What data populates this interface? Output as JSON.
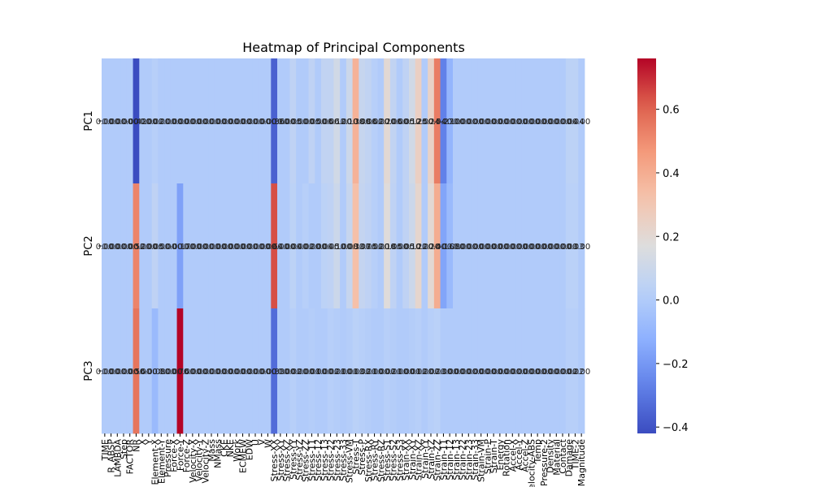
{
  "chart_data": {
    "type": "heatmap",
    "title": "Heatmap of Principal Components",
    "xlabel": "",
    "ylabel": "",
    "rows": [
      "PC1",
      "PC2",
      "PC3"
    ],
    "columns": [
      "TIME",
      "R_ABSP",
      "LAMBDA",
      "Step",
      "FACTOR",
      "NR",
      "X",
      "Y",
      "Element-X",
      "Element-Y",
      "Pressure",
      "Force-X",
      "Force-Y",
      "Force-Z",
      "Velocity-X",
      "Velocity-Y",
      "Velocity-Z",
      "Mass",
      "NMass",
      "CKE",
      "NKE",
      "Work",
      "ECMEW",
      "EDW",
      "U",
      "V",
      "W",
      "Stress-XX",
      "Stress-XY",
      "Stress-XZ",
      "Stress-YY",
      "Stress-YZ",
      "Stress-ZZ",
      "Stress-11",
      "Stress-12",
      "Stress-13",
      "Stress-22",
      "Stress-23",
      "Stress-33",
      "Stress-VM",
      "Stress-T",
      "Stress-P",
      "Stress-RX",
      "Stress-RY",
      "Stress-RZ",
      "Stress-S1",
      "Stress-S2",
      "Stress-S3",
      "Strain-XX",
      "Strain-XY",
      "Strain-XZ",
      "Strain-YY",
      "Strain-YZ",
      "Strain-ZZ",
      "Strain-11",
      "Strain-12",
      "Strain-13",
      "Strain-22",
      "Strain-23",
      "Strain-33",
      "Strain-VM",
      "Strain-P",
      "Strain-T",
      "Energy",
      "Rotation",
      "Accel-X",
      "Accel-Y",
      "Accel-Z",
      "Velocity-ABS",
      "Temp",
      "Pressure-2",
      "Density",
      "Material",
      "Contact",
      "Damage",
      "TIME-2",
      "Magnitude"
    ],
    "values": [
      [
        0.0,
        0.0,
        0.0,
        0.0,
        0.0,
        -0.42,
        0.0,
        0.0,
        0.02,
        0.0,
        0.0,
        0.0,
        0.0,
        0.0,
        0.0,
        0.0,
        0.0,
        0.0,
        0.0,
        0.0,
        0.0,
        0.0,
        0.0,
        0.0,
        0.0,
        0.0,
        0.0,
        -0.36,
        0.0,
        0.0,
        0.05,
        0.0,
        0.0,
        0.05,
        0.0,
        0.06,
        0.06,
        0.12,
        0.0,
        0.1,
        0.38,
        0.08,
        0.06,
        0.02,
        0.0,
        0.2,
        0.06,
        0.0,
        0.05,
        0.12,
        0.25,
        0.0,
        0.24,
        0.54,
        -0.27,
        -0.1,
        0.0,
        0.0,
        0.0,
        0.0,
        0.0,
        0.0,
        0.0,
        0.0,
        0.0,
        0.0,
        0.0,
        0.0,
        0.0,
        0.0,
        0.0,
        0.0,
        0.0,
        0.0,
        0.04,
        0.04,
        0.0
      ],
      [
        0.0,
        0.0,
        0.0,
        0.0,
        0.0,
        0.52,
        0.0,
        0.0,
        0.05,
        0.0,
        0.0,
        0.0,
        -0.17,
        0.0,
        0.0,
        0.0,
        0.0,
        0.0,
        0.0,
        0.0,
        0.0,
        0.0,
        0.0,
        0.0,
        0.0,
        0.0,
        0.0,
        0.64,
        0.0,
        0.0,
        0.04,
        0.0,
        0.02,
        0.0,
        0.0,
        0.04,
        0.05,
        0.1,
        0.0,
        0.08,
        0.33,
        0.07,
        0.05,
        0.02,
        0.0,
        0.18,
        0.05,
        0.0,
        0.05,
        0.1,
        0.22,
        0.0,
        0.2,
        0.4,
        -0.16,
        -0.08,
        0.0,
        0.0,
        0.0,
        0.0,
        0.0,
        0.0,
        0.0,
        0.0,
        0.0,
        0.0,
        0.0,
        0.0,
        0.0,
        0.0,
        0.0,
        0.0,
        0.0,
        0.0,
        0.03,
        0.03,
        0.0
      ],
      [
        0.0,
        0.0,
        0.0,
        0.0,
        0.0,
        0.56,
        0.0,
        0.0,
        -0.08,
        0.0,
        0.0,
        0.0,
        0.76,
        0.0,
        0.0,
        0.0,
        0.0,
        0.0,
        0.0,
        0.0,
        0.0,
        0.0,
        0.0,
        0.0,
        0.0,
        0.0,
        0.0,
        -0.33,
        0.0,
        0.0,
        0.02,
        0.0,
        0.0,
        0.01,
        0.0,
        0.0,
        0.02,
        0.01,
        0.0,
        0.01,
        0.03,
        0.02,
        0.01,
        0.0,
        0.0,
        0.02,
        0.01,
        0.0,
        0.0,
        0.01,
        0.02,
        0.0,
        0.02,
        0.03,
        0.0,
        0.0,
        0.0,
        0.0,
        0.0,
        0.0,
        0.0,
        0.0,
        0.0,
        0.0,
        0.0,
        0.0,
        0.0,
        0.0,
        0.0,
        0.0,
        0.0,
        0.0,
        0.0,
        0.0,
        0.02,
        0.02,
        0.0
      ]
    ],
    "colorbar": {
      "range": [
        -0.42,
        0.76
      ],
      "ticks": [
        "0.6",
        "0.4",
        "0.2",
        "0.0",
        "−0.2",
        "−0.4"
      ],
      "tick_values": [
        0.6,
        0.4,
        0.2,
        0.0,
        -0.2,
        -0.4
      ]
    },
    "colormap": "coolwarm",
    "annotations_visible": true
  }
}
